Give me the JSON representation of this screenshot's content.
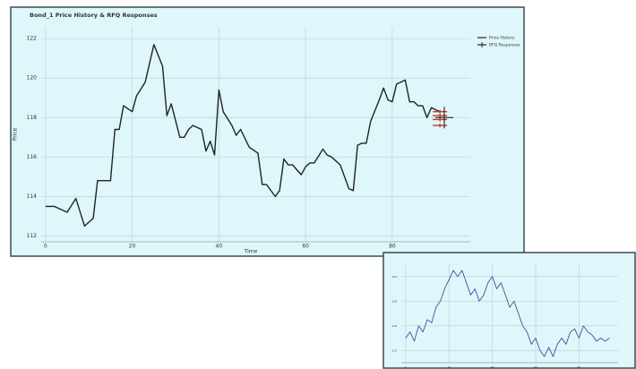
{
  "chart_data": [
    {
      "type": "line",
      "title": "Bond_1 Price History & RFQ Responses",
      "x_label": "Time",
      "y_label": "Price",
      "xlim": [
        -1,
        98
      ],
      "ylim": [
        111.7,
        122.6
      ],
      "xticks": [
        0,
        20,
        40,
        60,
        80
      ],
      "yticks": [
        112,
        114,
        116,
        118,
        120,
        122
      ],
      "grid": true,
      "legend": "outside-right",
      "series": [
        {
          "name": "Price History",
          "color": "#222222",
          "marker": "line",
          "x": [
            0,
            2,
            3,
            5,
            7,
            9,
            11,
            12,
            14,
            15,
            16,
            17,
            18,
            20,
            21,
            23,
            25,
            27,
            28,
            29,
            31,
            32,
            33,
            34,
            36,
            37,
            38,
            39,
            40,
            41,
            43,
            44,
            45,
            47,
            49,
            50,
            51,
            53,
            54,
            55,
            56,
            57,
            59,
            60,
            61,
            62,
            64,
            65,
            66,
            68,
            70,
            71,
            72,
            73,
            74,
            75,
            77,
            78,
            79,
            80,
            81,
            83,
            84,
            85,
            86,
            87,
            88,
            89,
            91
          ],
          "values": [
            113.5,
            113.5,
            113.4,
            113.2,
            113.9,
            112.5,
            112.9,
            114.8,
            114.8,
            114.8,
            117.4,
            117.4,
            118.6,
            118.3,
            119.1,
            119.8,
            121.7,
            120.6,
            118.1,
            118.7,
            117.0,
            117.0,
            117.4,
            117.6,
            117.4,
            116.3,
            116.8,
            116.1,
            119.4,
            118.3,
            117.6,
            117.1,
            117.4,
            116.5,
            116.2,
            114.6,
            114.6,
            114.0,
            114.3,
            115.9,
            115.6,
            115.6,
            115.1,
            115.5,
            115.7,
            115.7,
            116.4,
            116.1,
            116.0,
            115.6,
            114.4,
            114.3,
            116.6,
            116.7,
            116.7,
            117.8,
            118.9,
            119.5,
            118.9,
            118.8,
            119.7,
            119.9,
            118.8,
            118.8,
            118.6,
            118.6,
            118.0,
            118.5,
            118.3
          ]
        },
        {
          "name": "RFQ Responses",
          "color": "#c0392b",
          "marker": "cross",
          "x": [
            91,
            91,
            91,
            91,
            92
          ],
          "values": [
            118.3,
            118.1,
            117.9,
            117.6,
            118.0
          ]
        }
      ]
    },
    {
      "type": "line",
      "xlim": [
        -2,
        98
      ],
      "ylim": [
        110,
        126
      ],
      "xticks": [
        0,
        20,
        40,
        60,
        80
      ],
      "yticks": [
        112,
        116,
        120,
        124
      ],
      "grid": true,
      "series": [
        {
          "color": "#2b3f8c",
          "marker": "line",
          "x": [
            0,
            2,
            4,
            6,
            8,
            10,
            12,
            14,
            16,
            18,
            20,
            22,
            24,
            26,
            28,
            30,
            32,
            34,
            36,
            38,
            40,
            42,
            44,
            46,
            48,
            50,
            52,
            54,
            56,
            58,
            60,
            62,
            64,
            66,
            68,
            70,
            72,
            74,
            76,
            78,
            80,
            82,
            84,
            86,
            88,
            90,
            92,
            94
          ],
          "values": [
            114,
            115,
            113.5,
            116,
            115,
            117,
            116.5,
            119,
            120,
            122,
            123.5,
            125,
            124,
            125,
            123,
            121,
            122,
            120,
            121,
            123,
            124,
            122,
            123,
            121,
            119,
            120,
            118,
            116,
            115,
            113,
            114,
            112,
            111,
            112.5,
            111,
            113,
            114,
            113,
            115,
            115.5,
            114,
            116,
            115,
            114.5,
            113.5,
            114,
            113.5,
            114
          ]
        }
      ]
    }
  ]
}
